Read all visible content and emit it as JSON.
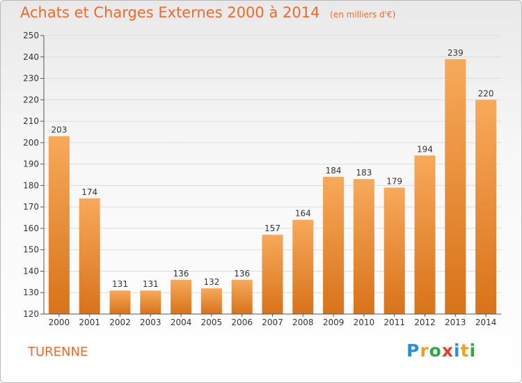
{
  "header": {
    "title": "Achats et Charges Externes 2000 à 2014",
    "subtitle": "(en milliers d'€)"
  },
  "footer": {
    "place": "TURENNE",
    "logo": {
      "letters": [
        "P",
        "r",
        "o",
        "x",
        "i",
        "t",
        "i"
      ],
      "colors": [
        "#2a8fd8",
        "#f2a01a",
        "#2aa84a",
        "#e63a2a",
        "#2a8fd8",
        "#f2a01a",
        "#2aa84a"
      ]
    }
  },
  "colors": {
    "accent": "#ec6a2c",
    "bar_light": "#f7a95a",
    "bar_dark": "#d8731a"
  },
  "chart_data": {
    "type": "bar",
    "title": "Achats et Charges Externes 2000 à 2014",
    "subtitle": "(en milliers d'€)",
    "categories": [
      "2000",
      "2001",
      "2002",
      "2003",
      "2004",
      "2005",
      "2006",
      "2007",
      "2008",
      "2009",
      "2010",
      "2011",
      "2012",
      "2013",
      "2014"
    ],
    "values": [
      203,
      174,
      131,
      131,
      136,
      132,
      136,
      157,
      164,
      184,
      183,
      179,
      194,
      239,
      220
    ],
    "ylim": [
      120,
      250
    ],
    "yticks": [
      120,
      130,
      140,
      150,
      160,
      170,
      180,
      190,
      200,
      210,
      220,
      230,
      240,
      250
    ],
    "grid": true,
    "legend": "none"
  }
}
